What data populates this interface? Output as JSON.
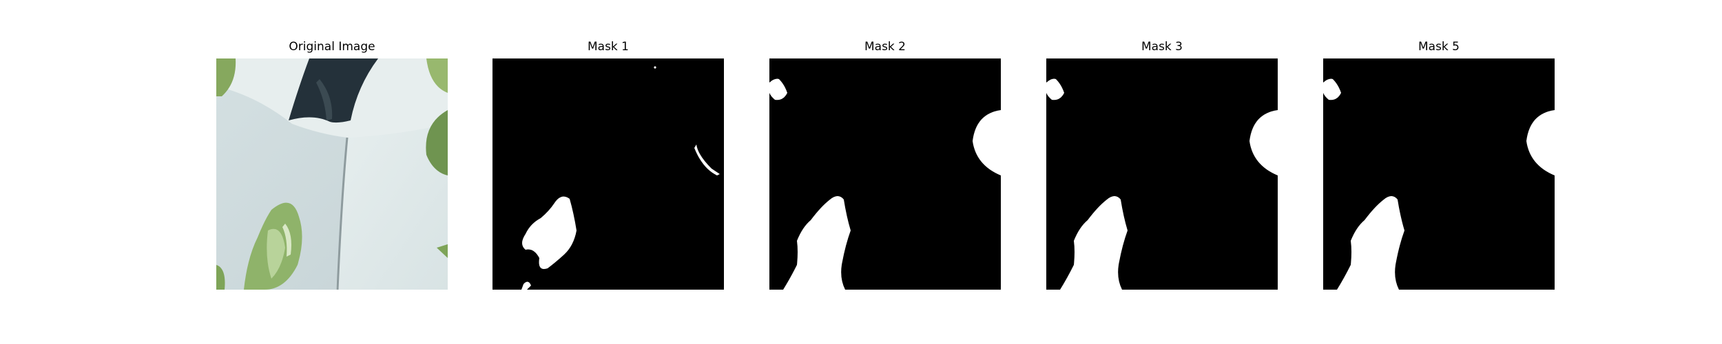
{
  "panels": [
    {
      "title": "Original Image",
      "kind": "photo"
    },
    {
      "title": "Mask 1",
      "kind": "mask"
    },
    {
      "title": "Mask 2",
      "kind": "mask"
    },
    {
      "title": "Mask 3",
      "kind": "mask"
    },
    {
      "title": "Mask 5",
      "kind": "mask"
    }
  ],
  "colors": {
    "background": "#ffffff",
    "mask_background": "#000000",
    "mask_foreground": "#ffffff",
    "wall": "#dde6e6",
    "leaf": "#8fb36a",
    "dark_slot": "#24313a"
  }
}
